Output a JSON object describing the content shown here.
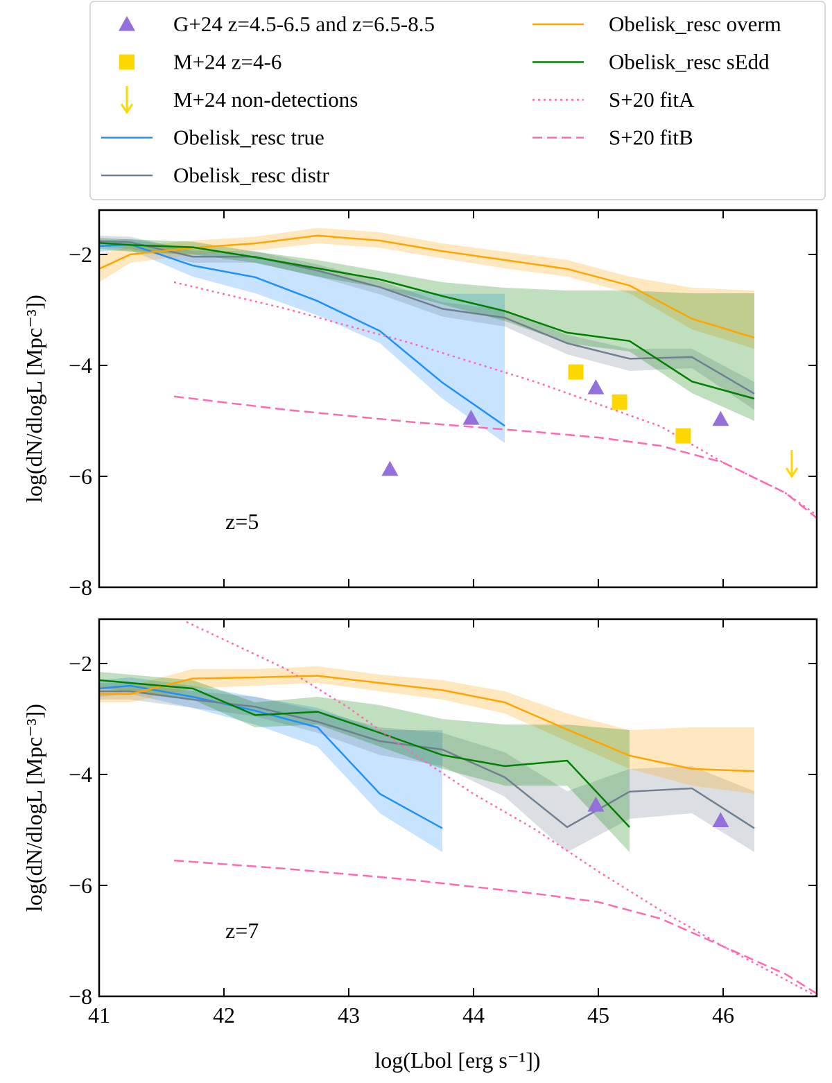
{
  "chart_data": [
    {
      "type": "line",
      "ylabel": "log(dN/dlogL [Mpc⁻³])",
      "annotation": "z=5",
      "xlim": [
        41,
        46.75
      ],
      "ylim": [
        -8,
        -1.2
      ],
      "xticks": [
        41,
        42,
        43,
        44,
        45,
        46
      ],
      "yticks": [
        {
          "value": -8,
          "label": "−8"
        },
        {
          "value": -6,
          "label": "−6"
        },
        {
          "value": -4,
          "label": "−4"
        },
        {
          "value": -2,
          "label": "−2"
        }
      ],
      "series": [
        {
          "name": "G+24 z=4.5-6.5 and z=6.5-8.5",
          "color": "#9370db",
          "marker": "triangle",
          "x": [
            43.33,
            43.98,
            44.98,
            45.98
          ],
          "values": [
            -5.87,
            -4.95,
            -4.4,
            -4.97
          ]
        },
        {
          "name": "M+24 z=4-6",
          "color": "#ffd700",
          "marker": "square",
          "x": [
            44.82,
            45.17,
            45.68
          ],
          "values": [
            -4.12,
            -4.66,
            -5.27
          ]
        },
        {
          "name": "M+24 non-detections",
          "color": "#ffd700",
          "marker": "arrow",
          "x": [
            46.55
          ],
          "values": [
            -6.0
          ]
        },
        {
          "name": "Obelisk_resc true",
          "color": "#1e90ff",
          "linestyle": "solid",
          "x": [
            41,
            41.25,
            41.75,
            42.25,
            42.75,
            43.25,
            43.75,
            44.25
          ],
          "values": [
            -1.85,
            -1.82,
            -2.2,
            -2.41,
            -2.84,
            -3.38,
            -4.31,
            -5.09
          ],
          "lower": [
            -1.95,
            -1.92,
            -2.4,
            -2.7,
            -3.1,
            -3.6,
            -4.6,
            -5.4
          ],
          "upper": [
            -1.75,
            -1.72,
            -1.9,
            -2.05,
            -2.3,
            -2.6,
            -2.71,
            -2.71
          ]
        },
        {
          "name": "Obelisk_resc distr",
          "color": "#708090",
          "linestyle": "solid",
          "x": [
            41,
            41.25,
            41.75,
            42.25,
            42.75,
            43.25,
            43.75,
            44.25,
            44.75,
            45.25,
            45.75,
            46.25
          ],
          "values": [
            -1.76,
            -1.78,
            -2.04,
            -2.04,
            -2.29,
            -2.59,
            -2.98,
            -3.14,
            -3.6,
            -3.88,
            -3.85,
            -4.51
          ],
          "lower": [
            -1.86,
            -1.9,
            -2.15,
            -2.15,
            -2.4,
            -2.72,
            -3.12,
            -3.3,
            -3.8,
            -4.1,
            -4.05,
            -4.8
          ],
          "upper": [
            -1.66,
            -1.68,
            -1.94,
            -1.94,
            -2.18,
            -2.48,
            -2.86,
            -3.0,
            -3.45,
            -3.7,
            -3.7,
            -4.3
          ]
        },
        {
          "name": "Obelisk_resc overm",
          "color": "#ffa500",
          "linestyle": "solid",
          "x": [
            41,
            41.25,
            41.75,
            42.25,
            42.75,
            43.25,
            43.75,
            44.25,
            44.75,
            45.25,
            45.75,
            46.25
          ],
          "values": [
            -2.26,
            -2.0,
            -1.88,
            -1.8,
            -1.66,
            -1.75,
            -1.94,
            -2.1,
            -2.26,
            -2.56,
            -3.16,
            -3.5
          ],
          "lower": [
            -2.5,
            -2.15,
            -2.0,
            -1.93,
            -1.8,
            -1.88,
            -2.07,
            -2.25,
            -2.4,
            -2.7,
            -3.35,
            -3.7
          ],
          "upper": [
            -2.0,
            -1.85,
            -1.75,
            -1.68,
            -1.52,
            -1.6,
            -1.8,
            -1.95,
            -2.1,
            -2.4,
            -2.6,
            -2.65
          ]
        },
        {
          "name": "Obelisk_resc sEdd",
          "color": "#008000",
          "linestyle": "solid",
          "x": [
            41,
            41.25,
            41.75,
            42.25,
            42.75,
            43.25,
            43.75,
            44.25,
            44.75,
            45.25,
            45.75,
            46.25
          ],
          "values": [
            -1.79,
            -1.83,
            -1.87,
            -2.05,
            -2.25,
            -2.45,
            -2.75,
            -3.02,
            -3.41,
            -3.56,
            -4.29,
            -4.6
          ],
          "lower": [
            -1.9,
            -1.95,
            -2.0,
            -2.15,
            -2.4,
            -2.6,
            -2.9,
            -3.2,
            -3.6,
            -3.75,
            -4.5,
            -5.0
          ],
          "upper": [
            -1.7,
            -1.73,
            -1.77,
            -1.95,
            -2.1,
            -2.3,
            -2.5,
            -2.6,
            -2.65,
            -2.65,
            -2.7,
            -2.7
          ]
        },
        {
          "name": "S+20 fitA",
          "color": "#ff69b4",
          "linestyle": "dotted",
          "x": [
            41.6,
            42.5,
            43.5,
            44.5,
            45.5,
            46,
            46.5,
            46.75
          ],
          "values": [
            -2.5,
            -2.98,
            -3.6,
            -4.3,
            -5.1,
            -5.75,
            -6.3,
            -6.7
          ]
        },
        {
          "name": "S+20 fitB",
          "color": "#ff69b4",
          "linestyle": "dashed",
          "x": [
            41.6,
            42.5,
            43.5,
            44.5,
            45,
            45.5,
            46,
            46.5,
            46.75
          ],
          "values": [
            -4.56,
            -4.8,
            -5.02,
            -5.2,
            -5.3,
            -5.45,
            -5.75,
            -6.3,
            -6.75
          ]
        }
      ]
    },
    {
      "type": "line",
      "ylabel": "log(dN/dlogL [Mpc⁻³])",
      "xlabel": "log(Lbol [erg s⁻¹])",
      "annotation": "z=7",
      "xlim": [
        41,
        46.75
      ],
      "ylim": [
        -8,
        -1.2
      ],
      "xticks": [
        41,
        42,
        43,
        44,
        45,
        46
      ],
      "yticks": [
        {
          "value": -8,
          "label": "−8"
        },
        {
          "value": -6,
          "label": "−6"
        },
        {
          "value": -4,
          "label": "−4"
        },
        {
          "value": -2,
          "label": "−2"
        }
      ],
      "series": [
        {
          "color": "#9370db",
          "marker": "triangle",
          "x": [
            44.98,
            45.98
          ],
          "values": [
            -4.55,
            -4.83
          ]
        },
        {
          "color": "#1e90ff",
          "linestyle": "solid",
          "x": [
            41,
            41.25,
            41.75,
            42.25,
            42.75,
            43.25,
            43.75
          ],
          "values": [
            -2.45,
            -2.4,
            -2.6,
            -2.85,
            -3.15,
            -4.35,
            -4.97
          ],
          "lower": [
            -2.6,
            -2.55,
            -2.8,
            -3.1,
            -3.5,
            -4.7,
            -5.4
          ],
          "upper": [
            -2.3,
            -2.25,
            -2.4,
            -2.6,
            -2.8,
            -3.2,
            -3.2
          ]
        },
        {
          "color": "#708090",
          "linestyle": "solid",
          "x": [
            41,
            41.25,
            41.75,
            42.25,
            42.75,
            43.25,
            43.75,
            44.25,
            44.75,
            45.25,
            45.75,
            46.25
          ],
          "values": [
            -2.5,
            -2.5,
            -2.65,
            -2.78,
            -3.05,
            -3.4,
            -3.55,
            -4.05,
            -4.95,
            -4.31,
            -4.25,
            -4.97
          ],
          "lower": [
            -2.65,
            -2.65,
            -2.8,
            -2.95,
            -3.25,
            -3.65,
            -3.85,
            -4.4,
            -5.4,
            -4.8,
            -4.7,
            -5.4
          ],
          "upper": [
            -2.35,
            -2.35,
            -2.5,
            -2.6,
            -2.85,
            -3.15,
            -3.25,
            -3.6,
            -4.3,
            -3.9,
            -3.85,
            -4.3
          ]
        },
        {
          "color": "#ffa500",
          "linestyle": "solid",
          "x": [
            41,
            41.25,
            41.75,
            42.25,
            42.75,
            43.25,
            43.75,
            44.25,
            44.75,
            45.25,
            45.75,
            46.25
          ],
          "values": [
            -2.55,
            -2.55,
            -2.27,
            -2.25,
            -2.22,
            -2.35,
            -2.48,
            -2.7,
            -3.19,
            -3.66,
            -3.9,
            -3.94
          ],
          "lower": [
            -2.7,
            -2.7,
            -2.45,
            -2.4,
            -2.35,
            -2.5,
            -2.65,
            -2.9,
            -3.4,
            -3.9,
            -4.2,
            -4.35
          ],
          "upper": [
            -2.4,
            -2.4,
            -2.1,
            -2.1,
            -2.05,
            -2.2,
            -2.3,
            -2.5,
            -2.9,
            -3.2,
            -3.15,
            -3.15
          ]
        },
        {
          "color": "#008000",
          "linestyle": "solid",
          "x": [
            41,
            41.25,
            41.75,
            42.25,
            42.75,
            43.25,
            43.75,
            44.25,
            44.75,
            45.25
          ],
          "values": [
            -2.3,
            -2.35,
            -2.45,
            -2.93,
            -2.87,
            -3.25,
            -3.65,
            -3.85,
            -3.75,
            -4.95
          ],
          "lower": [
            -2.45,
            -2.5,
            -2.65,
            -3.15,
            -3.1,
            -3.5,
            -3.9,
            -4.2,
            -4.2,
            -5.4
          ],
          "upper": [
            -2.15,
            -2.2,
            -2.3,
            -2.7,
            -2.6,
            -2.75,
            -3.0,
            -3.1,
            -3.1,
            -3.2
          ]
        },
        {
          "color": "#ff69b4",
          "linestyle": "dotted",
          "x": [
            41.7,
            42.5,
            43,
            43.5,
            44,
            44.5,
            45,
            45.5,
            46,
            46.5,
            46.75
          ],
          "values": [
            -1.25,
            -2.1,
            -2.8,
            -3.6,
            -4.35,
            -5.0,
            -5.75,
            -6.45,
            -7.1,
            -7.7,
            -8.0
          ]
        },
        {
          "color": "#ff69b4",
          "linestyle": "dashed",
          "x": [
            41.6,
            42.5,
            43.5,
            44.5,
            45,
            45.5,
            46,
            46.5,
            46.75
          ],
          "values": [
            -5.55,
            -5.7,
            -5.9,
            -6.15,
            -6.3,
            -6.6,
            -7.1,
            -7.6,
            -7.95
          ]
        }
      ]
    }
  ]
}
